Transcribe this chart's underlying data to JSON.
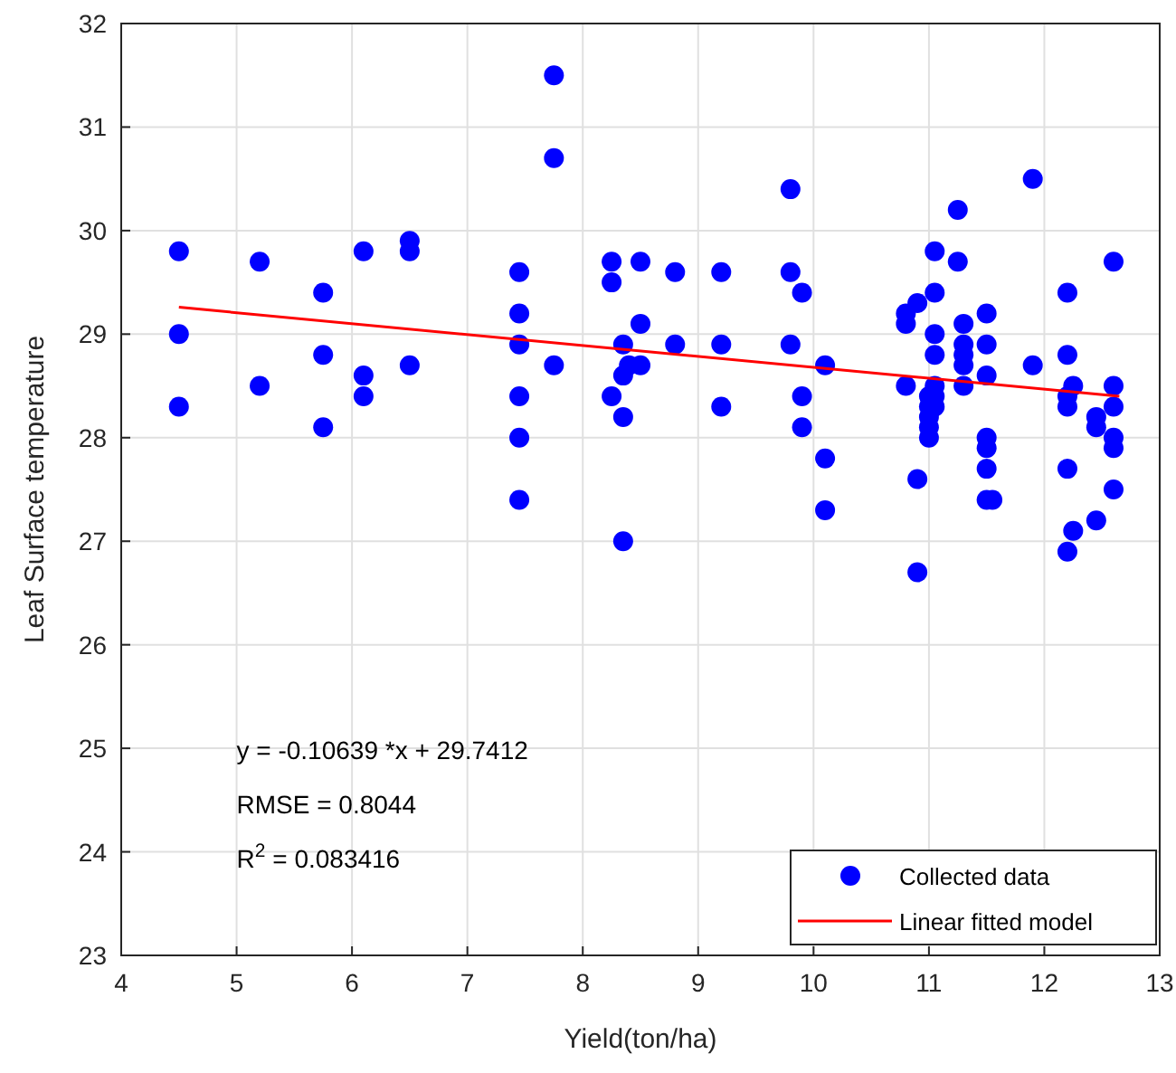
{
  "chart_data": {
    "type": "scatter",
    "xlabel": "Yield(ton/ha)",
    "ylabel": "Leaf Surface temperature",
    "xlim": [
      4,
      13
    ],
    "xticks": [
      4,
      5,
      6,
      7,
      8,
      9,
      10,
      11,
      12,
      13
    ],
    "ylim": [
      23,
      32
    ],
    "yticks": [
      23,
      24,
      25,
      26,
      27,
      28,
      29,
      30,
      31,
      32
    ],
    "grid": true,
    "legend": "bottom right",
    "marker": "circle",
    "annotations": [
      "y = -0.10639 *x + 29.7412",
      "RMSE = 0.8044",
      "R$^{2}$ = 0.083416"
    ],
    "series": [
      {
        "name": "Collected data",
        "color": "#0000ff",
        "x": [
          4.5,
          4.5,
          4.5,
          5.2,
          5.2,
          5.75,
          5.75,
          5.75,
          6.1,
          6.1,
          6.1,
          6.5,
          6.5,
          6.5,
          7.45,
          7.45,
          7.45,
          7.45,
          7.45,
          7.45,
          7.75,
          7.75,
          7.75,
          8.25,
          8.25,
          8.25,
          8.35,
          8.35,
          8.35,
          8.35,
          8.4,
          8.5,
          8.5,
          8.5,
          8.8,
          8.8,
          9.2,
          9.2,
          9.2,
          9.8,
          9.8,
          9.8,
          9.9,
          9.9,
          9.9,
          10.1,
          10.1,
          10.1,
          10.8,
          10.8,
          10.8,
          10.9,
          10.9,
          10.9,
          11.0,
          11.0,
          11.0,
          11.0,
          11.0,
          11.05,
          11.05,
          11.05,
          11.05,
          11.05,
          11.05,
          11.05,
          11.25,
          11.25,
          11.3,
          11.3,
          11.3,
          11.3,
          11.3,
          11.5,
          11.5,
          11.5,
          11.5,
          11.5,
          11.5,
          11.5,
          11.55,
          11.9,
          11.9,
          12.2,
          12.2,
          12.2,
          12.2,
          12.2,
          12.2,
          12.25,
          12.25,
          12.45,
          12.45,
          12.45,
          12.6,
          12.6,
          12.6,
          12.6,
          12.6,
          12.6
        ],
        "values": [
          29.8,
          29.0,
          28.3,
          29.7,
          28.5,
          29.4,
          28.8,
          28.1,
          29.8,
          28.6,
          28.4,
          29.9,
          29.8,
          28.7,
          29.6,
          29.2,
          28.9,
          28.4,
          28.0,
          27.4,
          31.5,
          30.7,
          28.7,
          29.7,
          29.5,
          28.4,
          28.9,
          28.6,
          28.2,
          27.0,
          28.7,
          29.7,
          29.1,
          28.7,
          29.6,
          28.9,
          29.6,
          28.9,
          28.3,
          30.4,
          29.6,
          28.9,
          29.4,
          28.4,
          28.1,
          28.7,
          27.8,
          27.3,
          29.2,
          29.1,
          28.5,
          29.3,
          27.6,
          26.7,
          28.4,
          28.3,
          28.2,
          28.1,
          28.0,
          29.8,
          29.4,
          29.0,
          28.8,
          28.5,
          28.4,
          28.3,
          30.2,
          29.7,
          29.1,
          28.9,
          28.8,
          28.7,
          28.5,
          29.2,
          28.9,
          28.6,
          28.0,
          27.9,
          27.7,
          27.4,
          27.4,
          30.5,
          28.7,
          29.4,
          28.8,
          28.4,
          28.3,
          27.7,
          26.9,
          27.1,
          28.5,
          28.2,
          28.1,
          27.2,
          29.7,
          28.5,
          28.3,
          28.0,
          27.9,
          27.5
        ]
      },
      {
        "name": "Linear fitted model",
        "type": "line",
        "color": "#ff0000",
        "marker": "none",
        "x": [
          4.5,
          12.65
        ],
        "values": [
          29.26,
          28.4
        ]
      }
    ]
  }
}
